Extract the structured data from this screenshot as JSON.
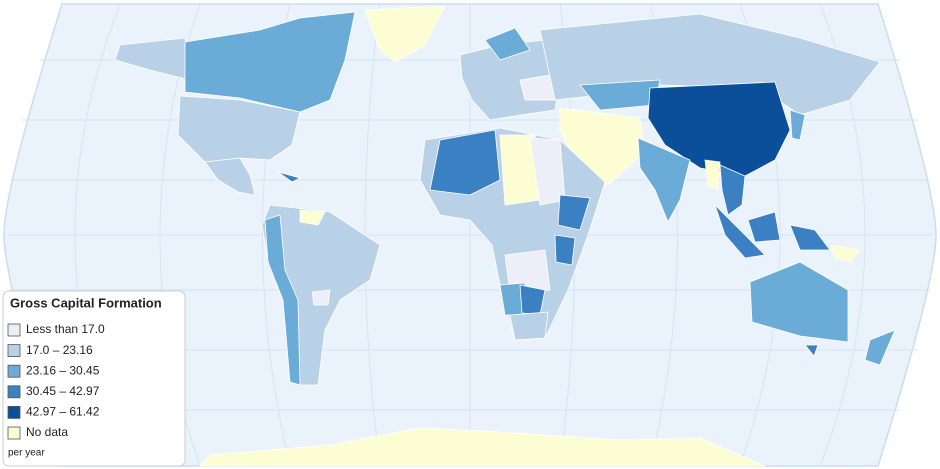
{
  "legend": {
    "title": "Gross Capital Formation",
    "items": [
      {
        "label": "Less than 17.0",
        "color": "#eeeef9"
      },
      {
        "label": "17.0 – 23.16",
        "color": "#b9d1e6"
      },
      {
        "label": "23.16 – 30.45",
        "color": "#6aabd7"
      },
      {
        "label": "30.45 – 42.97",
        "color": "#3a80c2"
      },
      {
        "label": "42.97 – 61.42",
        "color": "#0b4f9b"
      },
      {
        "label": "No data",
        "color": "#fdfdd3"
      }
    ],
    "note": "per year"
  }
}
